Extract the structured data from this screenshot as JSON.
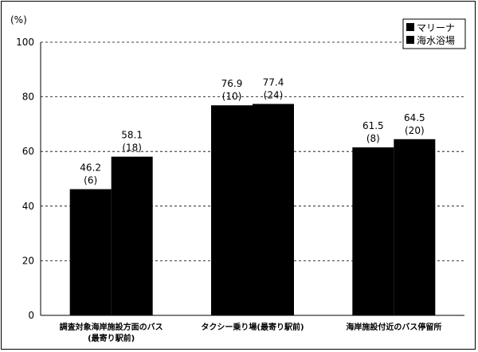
{
  "chart_data": {
    "type": "bar",
    "unit_label": "(%)",
    "categories": [
      [
        "調査対象海岸施設方面のバス",
        "(最寄り駅前)"
      ],
      [
        "タクシー乗り場(最寄り駅前)"
      ],
      [
        "海岸施設付近のバス停留所"
      ]
    ],
    "series": [
      {
        "name": "マリーナ",
        "values": [
          46.2,
          76.9,
          61.5
        ],
        "counts": [
          "(6)",
          "(10)",
          "(8)"
        ],
        "value_labels": [
          "46.2",
          "76.9",
          "61.5"
        ]
      },
      {
        "name": "海水浴場",
        "values": [
          58.1,
          77.4,
          64.5
        ],
        "counts": [
          "(18)",
          "(24)",
          "(20)"
        ],
        "value_labels": [
          "58.1",
          "77.4",
          "64.5"
        ]
      }
    ],
    "ylim": [
      0,
      100
    ],
    "yticks": [
      "0",
      "20",
      "40",
      "60",
      "80",
      "100"
    ],
    "grid": "dashed horizontal",
    "legend_position": "top-right",
    "colors": {
      "bar": "#000000",
      "grid": "#000000"
    }
  }
}
